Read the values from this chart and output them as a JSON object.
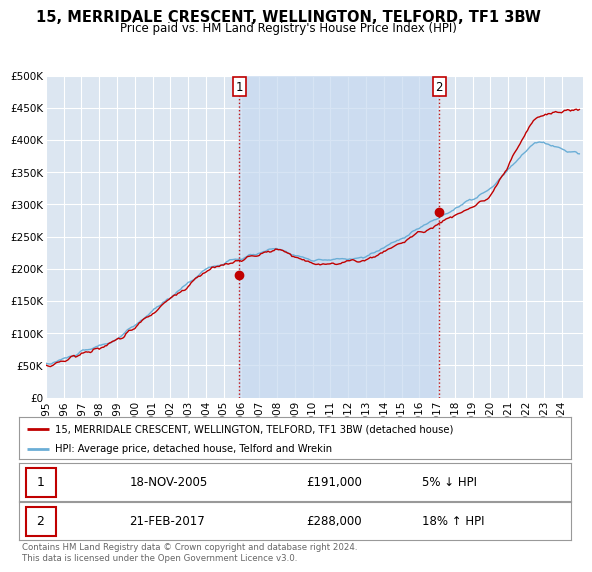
{
  "title": "15, MERRIDALE CRESCENT, WELLINGTON, TELFORD, TF1 3BW",
  "subtitle": "Price paid vs. HM Land Registry's House Price Index (HPI)",
  "ylabel_ticks": [
    "£0",
    "£50K",
    "£100K",
    "£150K",
    "£200K",
    "£250K",
    "£300K",
    "£350K",
    "£400K",
    "£450K",
    "£500K"
  ],
  "ytick_values": [
    0,
    50000,
    100000,
    150000,
    200000,
    250000,
    300000,
    350000,
    400000,
    450000,
    500000
  ],
  "ylim": [
    0,
    500000
  ],
  "xlim_start": 1995.0,
  "xlim_end": 2025.2,
  "hpi_color": "#6baed6",
  "price_color": "#c00000",
  "shade_color": "#c6d9f0",
  "marker1_x": 2005.88,
  "marker1_y": 191000,
  "marker2_x": 2017.12,
  "marker2_y": 288000,
  "annotation1": "1",
  "annotation2": "2",
  "legend_line1": "15, MERRIDALE CRESCENT, WELLINGTON, TELFORD, TF1 3BW (detached house)",
  "legend_line2": "HPI: Average price, detached house, Telford and Wrekin",
  "table_row1_num": "1",
  "table_row1_date": "18-NOV-2005",
  "table_row1_price": "£191,000",
  "table_row1_hpi": "5% ↓ HPI",
  "table_row2_num": "2",
  "table_row2_date": "21-FEB-2017",
  "table_row2_price": "£288,000",
  "table_row2_hpi": "18% ↑ HPI",
  "footnote": "Contains HM Land Registry data © Crown copyright and database right 2024.\nThis data is licensed under the Open Government Licence v3.0.",
  "bg_color": "#ffffff",
  "plot_bg_color": "#dce6f1",
  "grid_color": "#ffffff",
  "title_fontsize": 10.5,
  "subtitle_fontsize": 8.5,
  "tick_fontsize": 7.5
}
